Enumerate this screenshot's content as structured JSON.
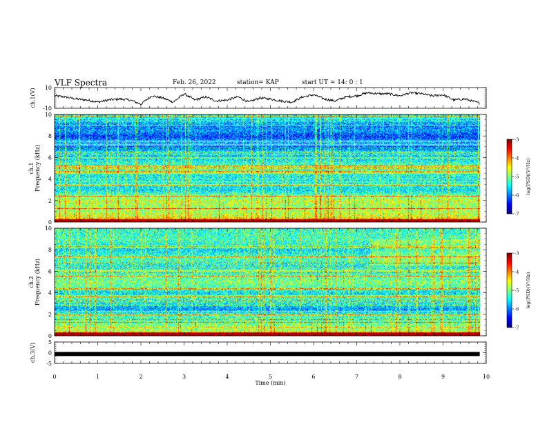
{
  "header": {
    "title": "VLF Spectra",
    "date": "Feb. 26, 2022",
    "station": "station= KAP",
    "start_ut": "start  UT =   14: 0  : 1"
  },
  "chart_data": [
    {
      "type": "line",
      "panel": "ch1_waveform",
      "ylabel": "ch.1(V)",
      "ylim": [
        -10,
        10
      ],
      "y_tick_labels": [
        "10",
        "-10"
      ],
      "x": [
        0,
        0.25,
        0.5,
        0.75,
        1,
        1.25,
        1.5,
        1.75,
        2,
        2.25,
        2.5,
        2.75,
        3,
        3.25,
        3.5,
        3.75,
        4,
        4.25,
        4.5,
        4.75,
        5,
        5.25,
        5.5,
        5.75,
        6,
        6.25,
        6.5,
        6.75,
        7,
        7.25,
        7.5,
        7.75,
        8,
        8.25,
        8.5,
        8.75,
        9,
        9.25,
        9.5,
        9.75,
        9.85
      ],
      "y": [
        2,
        1,
        -1,
        -2,
        -4,
        -2,
        -1,
        -2,
        -6,
        2,
        0,
        -4,
        4,
        -2,
        1,
        -3,
        -2,
        1,
        -4,
        0,
        -1,
        -3,
        -4,
        1,
        3,
        -1,
        -3,
        1,
        2,
        5,
        4,
        4,
        2,
        5,
        4,
        2,
        3,
        -2,
        -1,
        -4,
        -5
      ]
    },
    {
      "type": "heatmap",
      "panel": "ch1_spectrogram",
      "ylabel": "ch.1\nFrequency (kHz)",
      "ylim": [
        0,
        10
      ],
      "y_tick_labels": [
        "0",
        "2",
        "4",
        "6",
        "8",
        "10"
      ],
      "colorbar": {
        "label": "log(PSD)(V²/Hz)",
        "range": [
          -7,
          -3
        ],
        "tick_labels": [
          "-3",
          "-4",
          "-5",
          "-6",
          "-7"
        ]
      },
      "freq_profile_khz": [
        0,
        0.5,
        1,
        1.5,
        2,
        2.5,
        3,
        3.5,
        4,
        4.5,
        5,
        5.5,
        6,
        6.5,
        7,
        7.5,
        8,
        8.5,
        9,
        9.5,
        10
      ],
      "level_log_psd": [
        -3.5,
        -4.6,
        -4.8,
        -4.9,
        -4.7,
        -5.1,
        -5.6,
        -5.4,
        -5.5,
        -5.4,
        -5.2,
        -5.3,
        -5.7,
        -5.5,
        -6.2,
        -5.9,
        -6.3,
        -5.9,
        -6.0,
        -5.6,
        -5.5
      ]
    },
    {
      "type": "heatmap",
      "panel": "ch2_spectrogram",
      "ylabel": "ch.2\nFrequency (kHz)",
      "ylim": [
        0,
        10
      ],
      "y_tick_labels": [
        "0",
        "2",
        "4",
        "6",
        "8",
        "10"
      ],
      "colorbar": {
        "label": "log(PSD)(V²/Hz)",
        "range": [
          -7,
          -3
        ],
        "tick_labels": [
          "-3",
          "-4",
          "-5",
          "-6",
          "-7"
        ]
      },
      "freq_profile_khz": [
        0,
        0.5,
        1,
        1.5,
        2,
        2.5,
        3,
        3.5,
        4,
        4.5,
        5,
        5.5,
        6,
        6.5,
        7,
        7.5,
        8,
        8.5,
        9,
        9.5,
        10
      ],
      "level_log_psd": [
        -3.5,
        -4.8,
        -5.0,
        -5.2,
        -5.3,
        -5.9,
        -5.5,
        -5.3,
        -5.6,
        -5.2,
        -5.0,
        -5.2,
        -5.3,
        -5.5,
        -5.2,
        -5.3,
        -5.6,
        -5.4,
        -5.2,
        -5.3,
        -5.3
      ]
    },
    {
      "type": "line",
      "panel": "ch3_waveform",
      "ylabel": "ch.3(V)",
      "ylim": [
        -5,
        5
      ],
      "y_tick_labels": [
        "5",
        "0",
        "-5"
      ],
      "x": [
        0,
        9.85
      ],
      "y": [
        -0.6,
        -0.6
      ]
    }
  ],
  "x_axis": {
    "label": "Time  (min)",
    "range": [
      0,
      10
    ],
    "tick_labels": [
      "0",
      "1",
      "2",
      "3",
      "4",
      "5",
      "6",
      "7",
      "8",
      "9",
      "10"
    ]
  }
}
